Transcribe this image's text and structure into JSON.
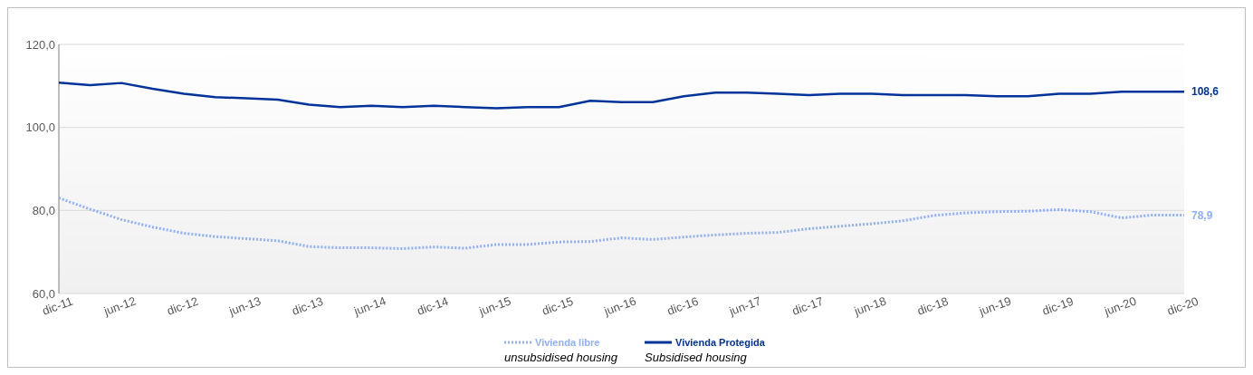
{
  "chart_data": {
    "type": "line",
    "categories": [
      "dic-11",
      null,
      "jun-12",
      null,
      "dic-12",
      null,
      "jun-13",
      null,
      "dic-13",
      null,
      "jun-14",
      null,
      "dic-14",
      null,
      "jun-15",
      null,
      "dic-15",
      null,
      "jun-16",
      null,
      "dic-16",
      null,
      "jun-17",
      null,
      "dic-17",
      null,
      "jun-18",
      null,
      "dic-18",
      null,
      "jun-19",
      null,
      "dic-19",
      null,
      "jun-20",
      null,
      "dic-20"
    ],
    "series": [
      {
        "name": "Vivienda libre",
        "color": "#8fb0ff",
        "line_style": "dotted",
        "values": [
          83.0,
          80.3,
          77.8,
          76.0,
          74.5,
          73.7,
          73.2,
          72.7,
          71.3,
          71.0,
          71.0,
          70.8,
          71.2,
          70.9,
          71.8,
          71.8,
          72.4,
          72.5,
          73.4,
          73.0,
          73.6,
          74.1,
          74.5,
          74.7,
          75.6,
          76.2,
          76.8,
          77.5,
          78.8,
          79.4,
          79.7,
          79.8,
          80.2,
          79.7,
          78.2,
          78.9,
          78.9
        ],
        "value_labels": [
          null,
          null,
          null,
          null,
          null,
          null,
          null,
          null,
          null,
          null,
          null,
          null,
          null,
          null,
          null,
          null,
          null,
          null,
          null,
          null,
          null,
          null,
          null,
          null,
          null,
          null,
          null,
          null,
          null,
          null,
          null,
          null,
          null,
          null,
          null,
          null,
          "78,9"
        ]
      },
      {
        "name": "Vivienda Protegida",
        "color": "#003399",
        "line_style": "solid",
        "values": [
          110.8,
          110.2,
          110.7,
          109.3,
          108.1,
          107.3,
          107.0,
          106.7,
          105.5,
          104.9,
          105.2,
          104.9,
          105.2,
          104.9,
          104.6,
          104.9,
          104.9,
          106.4,
          106.1,
          106.1,
          107.5,
          108.4,
          108.4,
          108.1,
          107.8,
          108.1,
          108.1,
          107.8,
          107.8,
          107.8,
          107.5,
          107.5,
          108.1,
          108.1,
          108.6,
          108.6,
          108.6
        ],
        "value_labels": [
          null,
          null,
          null,
          null,
          null,
          null,
          null,
          null,
          null,
          null,
          null,
          null,
          null,
          null,
          null,
          null,
          null,
          null,
          null,
          null,
          null,
          null,
          null,
          null,
          null,
          null,
          null,
          null,
          null,
          null,
          null,
          null,
          null,
          null,
          null,
          null,
          "108,6"
        ]
      }
    ],
    "annotations": [
      "unsubsidised housing",
      "Subsidised housing"
    ],
    "ylim": [
      60,
      120
    ],
    "yticks": [
      {
        "value": 60,
        "label": "60,0"
      },
      {
        "value": 80,
        "label": "80,0"
      },
      {
        "value": 100,
        "label": "100,0"
      },
      {
        "value": 120,
        "label": "120,0"
      }
    ],
    "grid": "y",
    "legend": "bottom",
    "marker": "none"
  }
}
